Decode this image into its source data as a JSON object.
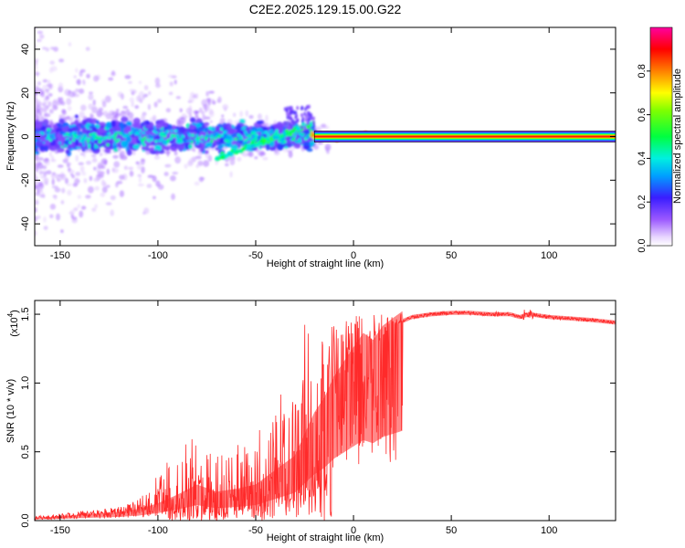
{
  "figure": {
    "title": "C2E2.2025.129.15.00.G22"
  },
  "chart_data": [
    {
      "type": "heatmap",
      "xlabel": "Height of straight line (km)",
      "ylabel": "Frequency (Hz)",
      "xlim": [
        -163,
        134
      ],
      "ylim": [
        -50,
        50
      ],
      "xticks": [
        -150,
        -100,
        -50,
        0,
        50,
        100
      ],
      "xtick_labels": [
        "-150",
        "-100",
        "-50",
        "0",
        "50",
        "100"
      ],
      "yticks": [
        -40,
        -20,
        0,
        20,
        40
      ],
      "ytick_labels": [
        "-40",
        "-20",
        "0",
        "20",
        "40"
      ],
      "grid": false,
      "colorbar": {
        "label": "Normalized spectral amplitude",
        "range": [
          0,
          1
        ],
        "ticks": [
          0.0,
          0.2,
          0.4,
          0.6,
          0.8
        ],
        "tick_labels": [
          "0.0",
          "0.2",
          "0.4",
          "0.6",
          "0.8"
        ]
      },
      "features": [
        {
          "name": "noisy low-altitude band",
          "x_range": [
            -163,
            -20
          ],
          "center_freq": 0,
          "spread_hz": 12,
          "amplitude": 0.25
        },
        {
          "name": "descending signal",
          "x_range": [
            -70,
            -20
          ],
          "freq_start": -10,
          "freq_end": 6,
          "amplitude": 0.45
        },
        {
          "name": "stable tone",
          "x_range": [
            -20,
            134
          ],
          "center_freq": 0,
          "amplitude": 0.9
        }
      ]
    },
    {
      "type": "line",
      "xlabel": "Height of straight line (km)",
      "ylabel": "SNR (10 * v/v)",
      "y_multiplier_label": "(x10",
      "y_multiplier_exp": "4",
      "y_multiplier_close": ")",
      "xlim": [
        -163,
        134
      ],
      "ylim": [
        0,
        1.6
      ],
      "xticks": [
        -150,
        -100,
        -50,
        0,
        50,
        100
      ],
      "xtick_labels": [
        "-150",
        "-100",
        "-50",
        "0",
        "50",
        "100"
      ],
      "yticks": [
        0,
        0.5,
        1.0,
        1.5
      ],
      "ytick_labels": [
        "0.0",
        "0.5",
        "1.0",
        "1.5"
      ],
      "grid": false,
      "series_color": "#ff2a2a",
      "x": [
        -163,
        -150,
        -140,
        -130,
        -120,
        -110,
        -100,
        -90,
        -80,
        -70,
        -60,
        -50,
        -40,
        -30,
        -25,
        -20,
        -15,
        -10,
        -5,
        0,
        5,
        10,
        15,
        20,
        25,
        30,
        40,
        50,
        60,
        70,
        80,
        85,
        90,
        95,
        100,
        110,
        120,
        134
      ],
      "y": [
        0.02,
        0.03,
        0.04,
        0.05,
        0.06,
        0.08,
        0.12,
        0.18,
        0.25,
        0.2,
        0.22,
        0.25,
        0.35,
        0.45,
        0.6,
        0.75,
        0.85,
        1.0,
        1.1,
        1.2,
        1.3,
        1.25,
        1.35,
        1.4,
        1.45,
        1.48,
        1.5,
        1.51,
        1.51,
        1.5,
        1.5,
        1.48,
        1.5,
        1.49,
        1.48,
        1.47,
        1.46,
        1.44
      ],
      "y_peak": [
        0.03,
        0.05,
        0.07,
        0.08,
        0.1,
        0.15,
        0.35,
        0.55,
        0.62,
        0.5,
        0.55,
        0.6,
        0.9,
        1.2,
        1.45,
        1.4,
        1.4,
        1.45,
        1.5,
        1.55,
        1.56,
        1.55,
        1.52,
        1.5,
        1.52,
        1.52,
        1.53,
        1.53,
        1.52,
        1.52,
        1.52,
        1.55,
        1.58,
        1.52,
        1.5,
        1.49,
        1.48,
        1.46
      ]
    }
  ]
}
